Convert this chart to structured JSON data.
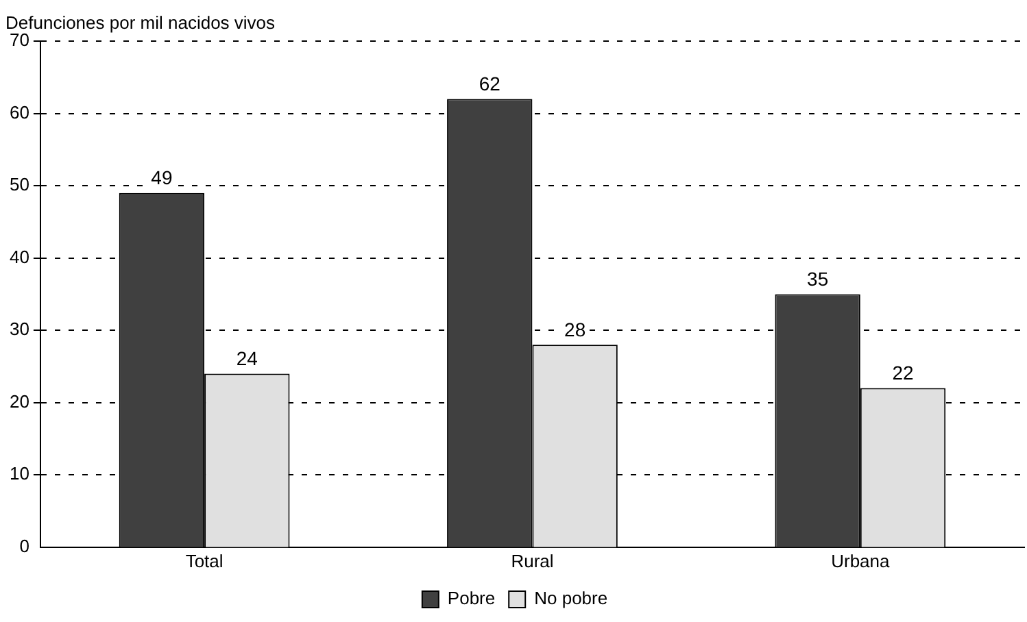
{
  "chart_data": {
    "type": "bar",
    "ylabel": "Defunciones por mil nacidos vivos",
    "categories": [
      "Total",
      "Rural",
      "Urbana"
    ],
    "series": [
      {
        "name": "Pobre",
        "color": "#404040",
        "values": [
          49,
          62,
          35
        ]
      },
      {
        "name": "No pobre",
        "color": "#e0e0e0",
        "values": [
          24,
          28,
          22
        ]
      }
    ],
    "ylim": [
      0,
      70
    ],
    "yticks": [
      0,
      10,
      20,
      30,
      40,
      50,
      60,
      70
    ],
    "grid": "y",
    "legend": "bottom",
    "data_labels": true
  }
}
